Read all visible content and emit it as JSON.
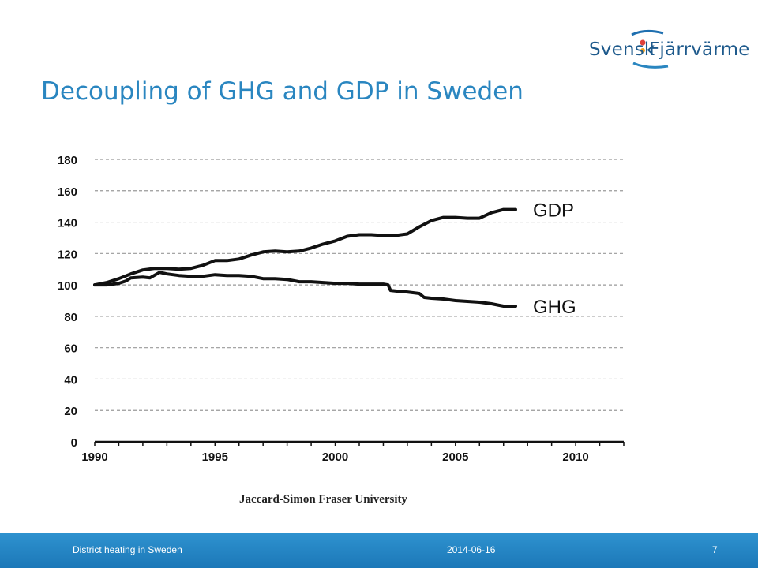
{
  "header": {
    "logo_left": "Svensk",
    "logo_right": "Fjärrvärme",
    "title": "Decoupling of GHG and GDP in Sweden"
  },
  "colors": {
    "title": "#2a86c0",
    "footer": "#2288c8",
    "line": "#111111",
    "grid": "#999999"
  },
  "chart_data": {
    "type": "line",
    "xlim": [
      1990,
      2012
    ],
    "ylim": [
      0,
      180
    ],
    "x_ticks": [
      "1990",
      "1995",
      "2000",
      "2005",
      "2010"
    ],
    "y_ticks": [
      "0",
      "20",
      "40",
      "60",
      "80",
      "100",
      "120",
      "140",
      "160",
      "180"
    ],
    "grid": true,
    "source": "Jaccard-Simon Fraser University",
    "series": [
      {
        "name": "GDP",
        "x": [
          1990,
          1990.5,
          1991,
          1991.5,
          1992,
          1992.5,
          1993,
          1993.5,
          1994,
          1994.5,
          1995,
          1995.5,
          1996,
          1996.5,
          1997,
          1997.5,
          1998,
          1998.5,
          1999,
          1999.5,
          2000,
          2000.5,
          2001,
          2001.5,
          2002,
          2002.5,
          2003,
          2003.5,
          2004,
          2004.5,
          2005,
          2005.5,
          2006,
          2006.5,
          2007,
          2007.5
        ],
        "y": [
          100,
          101.5,
          104,
          107,
          109.5,
          110.5,
          110.5,
          110,
          110.5,
          112.5,
          115.5,
          115.5,
          116.5,
          119,
          121,
          121.5,
          121,
          121.5,
          123.5,
          126,
          128,
          131,
          132,
          132,
          131.5,
          131.5,
          132.5,
          137,
          141,
          143,
          143,
          142.5,
          142.5,
          146,
          148,
          148
        ]
      },
      {
        "name": "GHG",
        "x": [
          1990,
          1990.5,
          1991,
          1991.3,
          1991.5,
          1992,
          1992.3,
          1992.7,
          1993,
          1993.5,
          1994,
          1994.5,
          1995,
          1995.5,
          1996,
          1996.5,
          1997,
          1997.5,
          1998,
          1998.5,
          1999,
          1999.5,
          2000,
          2000.5,
          2001,
          2001.5,
          2002,
          2002.2,
          2002.3,
          2002.6,
          2003,
          2003.5,
          2003.7,
          2004,
          2004.5,
          2005,
          2005.5,
          2006,
          2006.5,
          2007,
          2007.3,
          2007.5
        ],
        "y": [
          100,
          100,
          101,
          102.5,
          104.5,
          105,
          104.5,
          108,
          107,
          106,
          105.5,
          105.5,
          106.5,
          106,
          106,
          105.5,
          104,
          104,
          103.5,
          102,
          102,
          101.5,
          101,
          101,
          100.5,
          100.5,
          100.5,
          100,
          96.5,
          96,
          95.5,
          94.5,
          92,
          91.5,
          91,
          90,
          89.5,
          89,
          88,
          86.5,
          86,
          86.5
        ]
      }
    ]
  },
  "footer": {
    "left": "District heating in Sweden",
    "center": "2014-06-16",
    "page": "7"
  }
}
